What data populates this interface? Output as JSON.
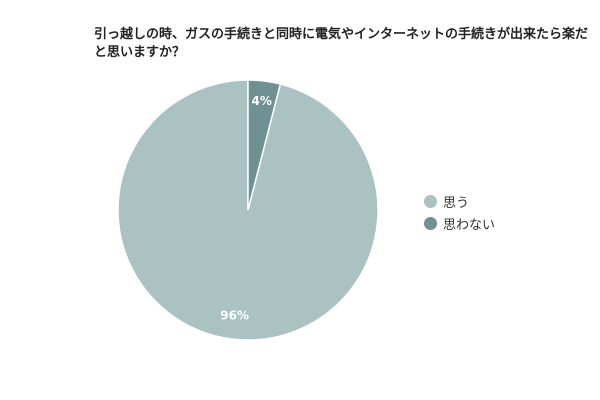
{
  "chart_data": {
    "type": "pie",
    "title": "引っ越しの時、ガスの手続きと同時に電気やインターネットの手続きが出来たら楽だと思いますか？",
    "categories": [
      "思う",
      "思わない"
    ],
    "values": [
      96,
      4
    ],
    "value_labels": [
      "96%",
      "4%"
    ],
    "colors": [
      "#aac2c2",
      "#6f9194"
    ],
    "legend": "right",
    "start": "top",
    "direction": "counterclockwise"
  }
}
